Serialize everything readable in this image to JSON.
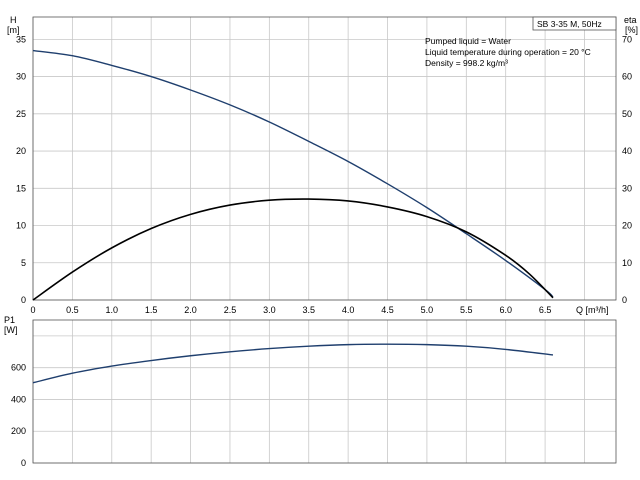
{
  "chart_data": [
    {
      "type": "line",
      "title": "SB 3-35 M, 50Hz",
      "notes": [
        "Pumped liquid = Water",
        "Liquid temperature during operation = 20 °C",
        "Density = 998.2 kg/m³"
      ],
      "xlabel": "Q [m³/h]",
      "ylabel": "H\n[m]",
      "y2label": "eta\n[%]",
      "xlim": [
        0,
        7.4
      ],
      "ylim": [
        0,
        38
      ],
      "y2lim": [
        0,
        76
      ],
      "xticks": [
        "0",
        "0.5",
        "1.0",
        "1.5",
        "2.0",
        "2.5",
        "3.0",
        "3.5",
        "4.0",
        "4.5",
        "5.0",
        "5.5",
        "6.0",
        "6.5"
      ],
      "yticks": [
        "0",
        "5",
        "10",
        "15",
        "20",
        "25",
        "30",
        "35"
      ],
      "y2ticks": [
        "0",
        "10",
        "20",
        "30",
        "40",
        "50",
        "60",
        "70"
      ],
      "grid": true,
      "series": [
        {
          "name": "",
          "axis": "left",
          "color": "#1f3f6e",
          "x": [
            0,
            0.5,
            1.0,
            1.5,
            2.0,
            2.5,
            3.0,
            3.5,
            4.0,
            4.5,
            5.0,
            5.5,
            6.0,
            6.5,
            6.6
          ],
          "values": [
            33.5,
            32.8,
            31.5,
            30.0,
            28.2,
            26.2,
            23.9,
            21.3,
            18.6,
            15.6,
            12.4,
            8.9,
            5.3,
            1.4,
            0.4
          ]
        },
        {
          "name": "",
          "axis": "right",
          "color": "#000000",
          "x": [
            0,
            0.5,
            1.0,
            1.5,
            2.0,
            2.5,
            3.0,
            3.5,
            4.0,
            4.5,
            5.0,
            5.5,
            6.0,
            6.3,
            6.6
          ],
          "values": [
            0,
            7.5,
            14.0,
            19.2,
            23.0,
            25.5,
            26.8,
            27.1,
            26.6,
            25.0,
            22.4,
            18.3,
            12.0,
            7.0,
            0.6
          ]
        }
      ]
    },
    {
      "type": "line",
      "ylabel": "P1\n[W]",
      "xlim": [
        0,
        7.4
      ],
      "ylim": [
        0,
        900
      ],
      "yticks": [
        "0",
        "200",
        "400",
        "600"
      ],
      "grid": true,
      "series": [
        {
          "name": "",
          "color": "#1f3f6e",
          "x": [
            0,
            0.5,
            1.0,
            1.5,
            2.0,
            2.5,
            3.0,
            3.5,
            4.0,
            4.5,
            5.0,
            5.5,
            6.0,
            6.6
          ],
          "values": [
            505,
            565,
            610,
            645,
            675,
            700,
            720,
            735,
            745,
            748,
            745,
            735,
            715,
            680
          ]
        }
      ]
    }
  ]
}
